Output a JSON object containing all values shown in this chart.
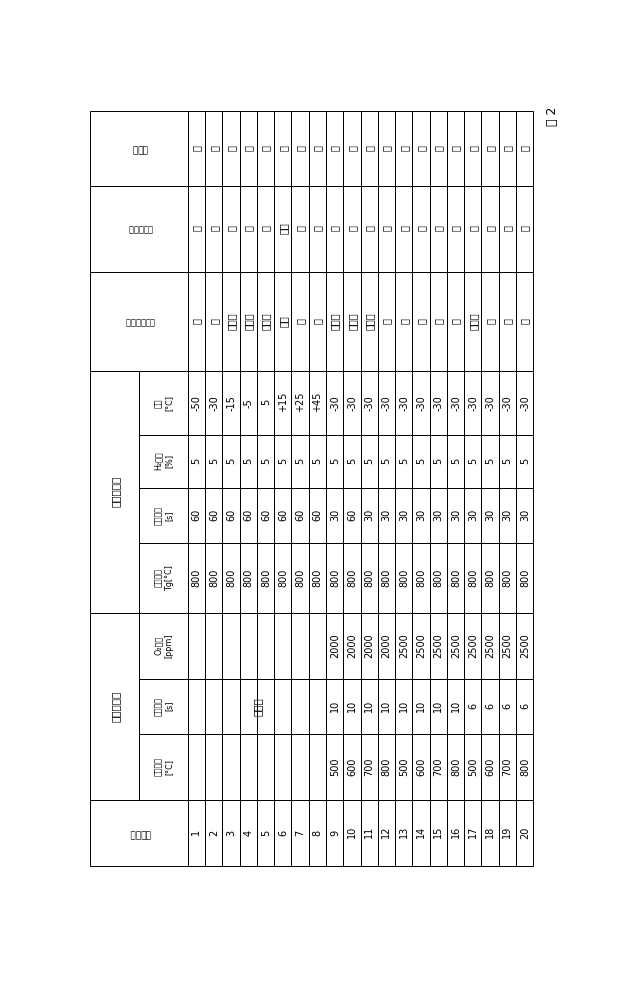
{
  "rows": [
    [
      "1",
      "",
      "",
      "",
      "800",
      "60",
      "5",
      "-50",
      "无",
      "无",
      "无"
    ],
    [
      "2",
      "",
      "",
      "",
      "800",
      "60",
      "5",
      "-30",
      "无",
      "无",
      "无"
    ],
    [
      "3",
      "",
      "",
      "",
      "800",
      "60",
      "5",
      "-15",
      "强干扪",
      "无",
      "无"
    ],
    [
      "4",
      "",
      "",
      "",
      "800",
      "60",
      "5",
      "-5",
      "强干扪",
      "无",
      "无"
    ],
    [
      "5",
      "",
      "",
      "",
      "800",
      "60",
      "5",
      "5",
      "强干扪",
      "无",
      "无"
    ],
    [
      "6",
      "",
      "",
      "",
      "800",
      "60",
      "5",
      "+15",
      "干扪",
      "受限",
      "无"
    ],
    [
      "7",
      "",
      "",
      "",
      "800",
      "60",
      "5",
      "+25",
      "有",
      "有",
      "有"
    ],
    [
      "8",
      "",
      "",
      "",
      "800",
      "60",
      "5",
      "+45",
      "有",
      "有",
      "有"
    ],
    [
      "9",
      "500",
      "10",
      "2000",
      "800",
      "30",
      "5",
      "-30",
      "有杂质",
      "有",
      "有"
    ],
    [
      "10",
      "600",
      "10",
      "2000",
      "800",
      "60",
      "5",
      "-30",
      "有杂质",
      "有",
      "有"
    ],
    [
      "11",
      "700",
      "10",
      "2000",
      "800",
      "30",
      "5",
      "-30",
      "有杂质",
      "有",
      "有"
    ],
    [
      "12",
      "800",
      "10",
      "2000",
      "800",
      "30",
      "5",
      "-30",
      "有",
      "有",
      "有"
    ],
    [
      "13",
      "500",
      "10",
      "2500",
      "800",
      "30",
      "5",
      "-30",
      "有",
      "有",
      "有"
    ],
    [
      "14",
      "600",
      "10",
      "2500",
      "800",
      "30",
      "5",
      "-30",
      "有",
      "有",
      "有"
    ],
    [
      "15",
      "700",
      "10",
      "2500",
      "800",
      "30",
      "5",
      "-30",
      "有",
      "有",
      "有"
    ],
    [
      "16",
      "800",
      "10",
      "2500",
      "800",
      "30",
      "5",
      "-30",
      "有",
      "有",
      "有"
    ],
    [
      "17",
      "500",
      "6",
      "2500",
      "800",
      "30",
      "5",
      "-30",
      "有杂质",
      "有",
      "有"
    ],
    [
      "18",
      "600",
      "6",
      "2500",
      "800",
      "30",
      "5",
      "-30",
      "有",
      "有",
      "有"
    ],
    [
      "19",
      "700",
      "6",
      "2500",
      "800",
      "30",
      "5",
      "-30",
      "有",
      "有",
      "有"
    ],
    [
      "20",
      "800",
      "6",
      "2500",
      "800",
      "30",
      "5",
      "-30",
      "有",
      "有",
      "有"
    ]
  ],
  "header_group1": "第一退火级",
  "header_group2": "第二退火级",
  "col0_header": "试验编号",
  "col8_header": "锥层可润湿性",
  "col9_header": "锥层粘附性",
  "col10_header": "本发明",
  "sub1": "退火温度\n[°C]",
  "sub2": "退火时间\n[s]",
  "sub3": "O₂含量\n[ppm]",
  "sub4": "退火温度\nTg[°C]",
  "sub5": "退火时间\n[s]",
  "sub6": "H₂含量\n[%]",
  "sub7": "露点\n[°C]",
  "merge_label": "单级式",
  "table_label": "表 2",
  "lw": 0.7
}
